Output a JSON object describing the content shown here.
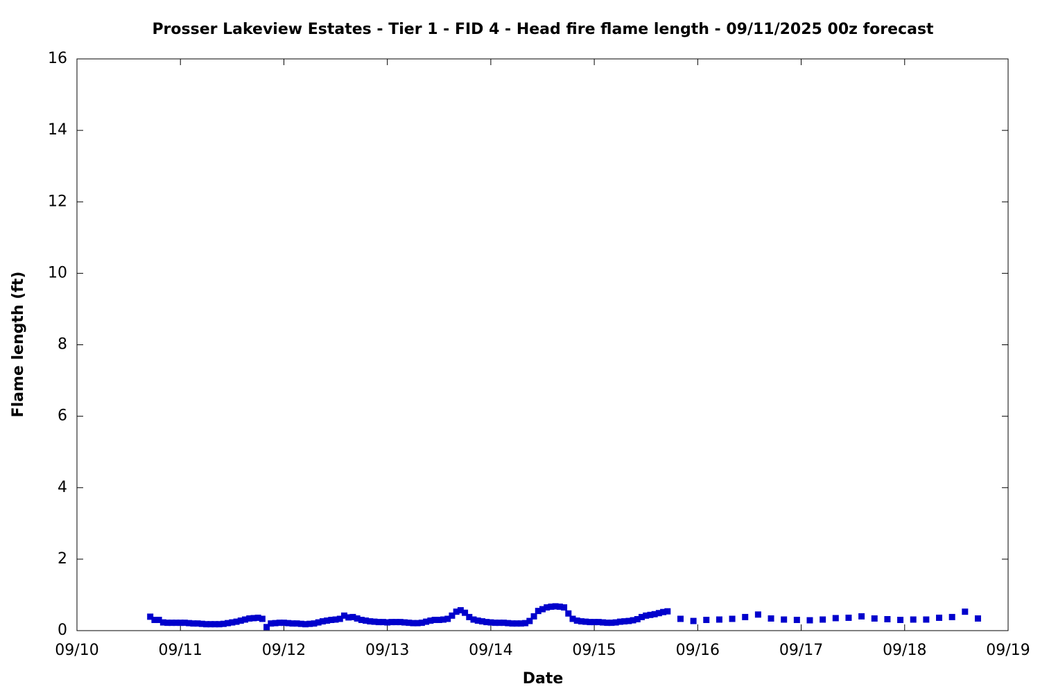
{
  "chart_data": {
    "type": "scatter",
    "title": "Prosser Lakeview Estates - Tier 1 - FID 4 - Head fire flame length - 09/11/2025 00z forecast",
    "xlabel": "Date",
    "ylabel": "Flame length (ft)",
    "color": "#0000cc",
    "x": [
      17,
      18,
      19,
      20,
      21,
      22,
      23,
      24,
      25,
      26,
      27,
      28,
      29,
      30,
      31,
      32,
      33,
      34,
      35,
      36,
      37,
      38,
      39,
      40,
      41,
      42,
      43,
      44,
      45,
      46,
      47,
      48,
      49,
      50,
      51,
      52,
      53,
      54,
      55,
      56,
      57,
      58,
      59,
      60,
      61,
      62,
      63,
      64,
      65,
      66,
      67,
      68,
      69,
      70,
      71,
      72,
      73,
      74,
      75,
      76,
      77,
      78,
      79,
      80,
      81,
      82,
      83,
      84,
      85,
      86,
      87,
      88,
      89,
      90,
      91,
      92,
      93,
      94,
      95,
      96,
      97,
      98,
      99,
      100,
      101,
      102,
      103,
      104,
      105,
      106,
      107,
      108,
      109,
      110,
      111,
      112,
      113,
      114,
      115,
      116,
      117,
      118,
      119,
      120,
      121,
      122,
      123,
      124,
      125,
      126,
      127,
      128,
      129,
      130,
      131,
      132,
      133,
      134,
      135,
      136,
      137,
      140,
      143,
      146,
      149,
      152,
      155,
      158,
      161,
      164,
      167,
      170,
      173,
      176,
      179,
      182,
      185,
      188,
      191,
      194,
      197,
      200,
      203,
      206,
      209
    ],
    "values": [
      0.39,
      0.3,
      0.3,
      0.23,
      0.22,
      0.22,
      0.22,
      0.22,
      0.22,
      0.21,
      0.2,
      0.2,
      0.19,
      0.18,
      0.18,
      0.18,
      0.18,
      0.19,
      0.21,
      0.23,
      0.25,
      0.28,
      0.31,
      0.34,
      0.35,
      0.36,
      0.33,
      0.1,
      0.2,
      0.21,
      0.22,
      0.22,
      0.21,
      0.2,
      0.2,
      0.19,
      0.18,
      0.19,
      0.2,
      0.23,
      0.26,
      0.28,
      0.3,
      0.31,
      0.33,
      0.42,
      0.37,
      0.38,
      0.34,
      0.3,
      0.28,
      0.26,
      0.25,
      0.24,
      0.24,
      0.23,
      0.24,
      0.24,
      0.24,
      0.23,
      0.22,
      0.21,
      0.21,
      0.22,
      0.25,
      0.28,
      0.3,
      0.3,
      0.31,
      0.33,
      0.42,
      0.53,
      0.57,
      0.5,
      0.38,
      0.31,
      0.28,
      0.26,
      0.24,
      0.23,
      0.22,
      0.22,
      0.22,
      0.21,
      0.2,
      0.2,
      0.2,
      0.21,
      0.27,
      0.4,
      0.55,
      0.6,
      0.65,
      0.67,
      0.68,
      0.67,
      0.65,
      0.48,
      0.33,
      0.28,
      0.26,
      0.25,
      0.24,
      0.24,
      0.24,
      0.23,
      0.22,
      0.22,
      0.23,
      0.25,
      0.26,
      0.27,
      0.29,
      0.32,
      0.38,
      0.42,
      0.44,
      0.46,
      0.49,
      0.52,
      0.54,
      0.33,
      0.27,
      0.3,
      0.31,
      0.33,
      0.38,
      0.45,
      0.34,
      0.31,
      0.3,
      0.29,
      0.31,
      0.35,
      0.36,
      0.4,
      0.34,
      0.32,
      0.3,
      0.31,
      0.31,
      0.36,
      0.38,
      0.53,
      0.34
    ],
    "xlim": [
      0,
      216
    ],
    "xticks": [
      {
        "value": 0,
        "label": "09/10"
      },
      {
        "value": 24,
        "label": "09/11"
      },
      {
        "value": 48,
        "label": "09/12"
      },
      {
        "value": 72,
        "label": "09/13"
      },
      {
        "value": 96,
        "label": "09/14"
      },
      {
        "value": 120,
        "label": "09/15"
      },
      {
        "value": 144,
        "label": "09/16"
      },
      {
        "value": 168,
        "label": "09/17"
      },
      {
        "value": 192,
        "label": "09/18"
      },
      {
        "value": 216,
        "label": "09/19"
      }
    ],
    "ylim": [
      0,
      16
    ],
    "yticks": [
      0,
      2,
      4,
      6,
      8,
      10,
      12,
      14,
      16
    ]
  }
}
